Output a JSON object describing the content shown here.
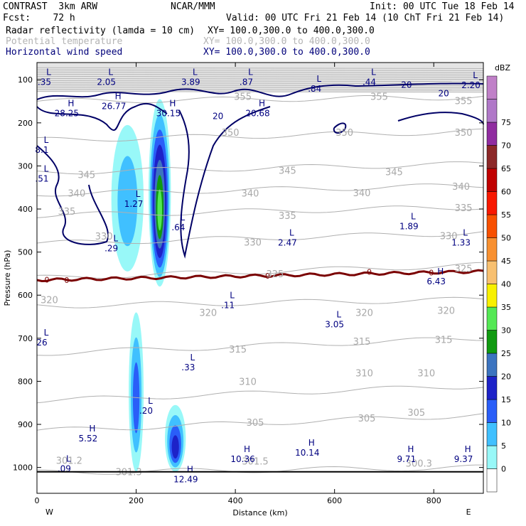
{
  "header": {
    "line1_left": "CONTRAST  3km ARW",
    "line1_mid": "NCAR/MMM",
    "line1_right": "Init: 00 UTC Tue 18 Feb 14",
    "line2_left": "Fcst:    72 h",
    "line2_right": "Valid: 00 UTC Fri 21 Feb 14 (10 ChT Fri 21 Feb 14)",
    "field1_name": "Radar reflectivity (lamda = 10 cm)",
    "field1_xy": "XY= 100.0,300.0 to 400.0,300.0",
    "field2_name": "Potential temperature",
    "field2_xy": "XY= 100.0,300.0 to 400.0,300.0",
    "field3_name": "Horizontal wind speed",
    "field3_xy": "XY= 100.0,300.0 to 400.0,300.0"
  },
  "chart_data": {
    "type": "cross-section",
    "xlabel": "Distance (km)",
    "ylabel": "Pressure (hPa)",
    "xlim": [
      0,
      900
    ],
    "ylim": [
      1060,
      60
    ],
    "x_ticks": [
      0,
      200,
      400,
      600,
      800
    ],
    "y_ticks": [
      100,
      200,
      300,
      400,
      500,
      600,
      700,
      800,
      900,
      1000
    ],
    "left_end_label": "W",
    "right_end_label": "E",
    "colorbar": {
      "unit": "dBZ",
      "levels": [
        0,
        5,
        10,
        15,
        20,
        25,
        30,
        35,
        40,
        45,
        50,
        55,
        60,
        65,
        70,
        75
      ],
      "colors": [
        "#ffffff",
        "#98f8f8",
        "#40c0ff",
        "#2a5ef8",
        "#1d22c8",
        "#3c74c0",
        "#109a10",
        "#54e854",
        "#f8f000",
        "#f8c070",
        "#f89030",
        "#f85000",
        "#f81800",
        "#c00000",
        "#8c2828",
        "#902ca0",
        "#b078c8",
        "#c080c8"
      ]
    },
    "reflectivity_cells": [
      {
        "x": [
          150,
          215
        ],
        "p": [
          205,
          545
        ],
        "max_dbz": 10
      },
      {
        "x": [
          225,
          270
        ],
        "p": [
          145,
          580
        ],
        "max_dbz": 35
      },
      {
        "x": [
          185,
          215
        ],
        "p": [
          640,
          1010
        ],
        "max_dbz": 15
      },
      {
        "x": [
          258,
          300
        ],
        "p": [
          855,
          1010
        ],
        "max_dbz": 20
      }
    ],
    "theta_contours": [
      {
        "value": 300,
        "p_left": 1012,
        "p_right": 1000
      },
      {
        "value": 305,
        "p_left": 915,
        "p_right": 878
      },
      {
        "value": 310,
        "p_left": 845,
        "p_right": 810
      },
      {
        "value": 315,
        "p_left": 735,
        "p_right": 700
      },
      {
        "value": 320,
        "p_left": 625,
        "p_right": 610
      },
      {
        "value": 325,
        "p_left": 560,
        "p_right": 530
      },
      {
        "value": 330,
        "p_left": 480,
        "p_right": 455
      },
      {
        "value": 335,
        "p_left": 415,
        "p_right": 395
      },
      {
        "value": 340,
        "p_left": 365,
        "p_right": 345
      },
      {
        "value": 345,
        "p_left": 315,
        "p_right": 295
      },
      {
        "value": 350,
        "p_left": 240,
        "p_right": 220
      },
      {
        "value": 355,
        "p_left": 150,
        "p_right": 140
      }
    ],
    "theta_labels": [
      {
        "text": "320",
        "x": 25,
        "p": 610
      },
      {
        "text": "325",
        "x": 480,
        "p": 550
      },
      {
        "text": "325",
        "x": 860,
        "p": 538
      },
      {
        "text": "330",
        "x": 135,
        "p": 463
      },
      {
        "text": "330",
        "x": 435,
        "p": 477
      },
      {
        "text": "330",
        "x": 830,
        "p": 462
      },
      {
        "text": "335",
        "x": 60,
        "p": 405
      },
      {
        "text": "335",
        "x": 505,
        "p": 415
      },
      {
        "text": "335",
        "x": 860,
        "p": 397
      },
      {
        "text": "340",
        "x": 80,
        "p": 363
      },
      {
        "text": "340",
        "x": 430,
        "p": 363
      },
      {
        "text": "340",
        "x": 655,
        "p": 362
      },
      {
        "text": "340",
        "x": 855,
        "p": 347
      },
      {
        "text": "345",
        "x": 100,
        "p": 320
      },
      {
        "text": "345",
        "x": 505,
        "p": 310
      },
      {
        "text": "345",
        "x": 720,
        "p": 313
      },
      {
        "text": "350",
        "x": 390,
        "p": 222
      },
      {
        "text": "350",
        "x": 620,
        "p": 222
      },
      {
        "text": "350",
        "x": 860,
        "p": 222
      },
      {
        "text": "355",
        "x": 415,
        "p": 138
      },
      {
        "text": "355",
        "x": 690,
        "p": 138
      },
      {
        "text": "355",
        "x": 860,
        "p": 148
      },
      {
        "text": "320",
        "x": 345,
        "p": 640
      },
      {
        "text": "320",
        "x": 660,
        "p": 640
      },
      {
        "text": "320",
        "x": 825,
        "p": 635
      },
      {
        "text": "315",
        "x": 405,
        "p": 725
      },
      {
        "text": "315",
        "x": 655,
        "p": 707
      },
      {
        "text": "315",
        "x": 820,
        "p": 703
      },
      {
        "text": "310",
        "x": 425,
        "p": 800
      },
      {
        "text": "310",
        "x": 660,
        "p": 780
      },
      {
        "text": "310",
        "x": 785,
        "p": 780
      },
      {
        "text": "305",
        "x": 440,
        "p": 895
      },
      {
        "text": "305",
        "x": 665,
        "p": 885
      },
      {
        "text": "305",
        "x": 765,
        "p": 872
      },
      {
        "text": "301.2",
        "x": 65,
        "p": 983
      },
      {
        "text": "301.3",
        "x": 185,
        "p": 1010
      },
      {
        "text": "301.5",
        "x": 440,
        "p": 985
      },
      {
        "text": "300.3",
        "x": 770,
        "p": 990
      }
    ],
    "zero_line_labels": [
      {
        "text": "0",
        "x": 20,
        "p": 564
      },
      {
        "text": "0",
        "x": 60,
        "p": 565
      },
      {
        "text": "0",
        "x": 465,
        "p": 555
      },
      {
        "text": "0",
        "x": 670,
        "p": 546
      },
      {
        "text": "0",
        "x": 795,
        "p": 548
      }
    ],
    "wind_contour_labels": [
      {
        "text": "20",
        "x": 365,
        "p": 183
      },
      {
        "text": "20",
        "x": 745,
        "p": 110
      },
      {
        "text": "20",
        "x": 820,
        "p": 130
      }
    ],
    "wind_extremes": [
      {
        "kind": "L",
        "value": ".35",
        "x": 15,
        "p": 92
      },
      {
        "kind": "L",
        "value": "2.05",
        "x": 140,
        "p": 92
      },
      {
        "kind": "L",
        "value": "3.89",
        "x": 310,
        "p": 92
      },
      {
        "kind": "L",
        "value": ".87",
        "x": 422,
        "p": 92
      },
      {
        "kind": "L",
        "value": ".84",
        "x": 560,
        "p": 108
      },
      {
        "kind": "L",
        "value": ".44",
        "x": 670,
        "p": 92
      },
      {
        "kind": "L",
        "value": "2.20",
        "x": 875,
        "p": 100
      },
      {
        "kind": "H",
        "value": "28.25",
        "x": 60,
        "p": 165
      },
      {
        "kind": "H",
        "value": "26.77",
        "x": 155,
        "p": 148
      },
      {
        "kind": "H",
        "value": "30.15",
        "x": 265,
        "p": 165
      },
      {
        "kind": "H",
        "value": "20.68",
        "x": 445,
        "p": 165
      },
      {
        "kind": "L",
        "value": "8.1",
        "x": 10,
        "p": 250
      },
      {
        "kind": "L",
        "value": ".51",
        "x": 10,
        "p": 317
      },
      {
        "kind": "L",
        "value": "1.27",
        "x": 195,
        "p": 375
      },
      {
        "kind": "L",
        "value": ".64",
        "x": 285,
        "p": 430
      },
      {
        "kind": "L",
        "value": ".29",
        "x": 150,
        "p": 478
      },
      {
        "kind": "L",
        "value": "2.47",
        "x": 505,
        "p": 465
      },
      {
        "kind": "L",
        "value": "1.89",
        "x": 750,
        "p": 427
      },
      {
        "kind": "L",
        "value": "1.33",
        "x": 855,
        "p": 465
      },
      {
        "kind": "H",
        "value": "6.43",
        "x": 805,
        "p": 555
      },
      {
        "kind": "L",
        "value": ".11",
        "x": 385,
        "p": 610
      },
      {
        "kind": "L",
        "value": "3.05",
        "x": 600,
        "p": 655
      },
      {
        "kind": "L",
        "value": "26",
        "x": 10,
        "p": 697
      },
      {
        "kind": "L",
        "value": ".33",
        "x": 305,
        "p": 755
      },
      {
        "kind": "L",
        "value": ".20",
        "x": 220,
        "p": 855
      },
      {
        "kind": "H",
        "value": "5.52",
        "x": 103,
        "p": 920
      },
      {
        "kind": "H",
        "value": "10.36",
        "x": 415,
        "p": 968
      },
      {
        "kind": "H",
        "value": "10.14",
        "x": 545,
        "p": 953
      },
      {
        "kind": "H",
        "value": "9.71",
        "x": 745,
        "p": 968
      },
      {
        "kind": "H",
        "value": "9.37",
        "x": 860,
        "p": 968
      },
      {
        "kind": "L",
        "value": ".09",
        "x": 55,
        "p": 990
      },
      {
        "kind": "H",
        "value": "12.49",
        "x": 300,
        "p": 1015
      }
    ]
  }
}
